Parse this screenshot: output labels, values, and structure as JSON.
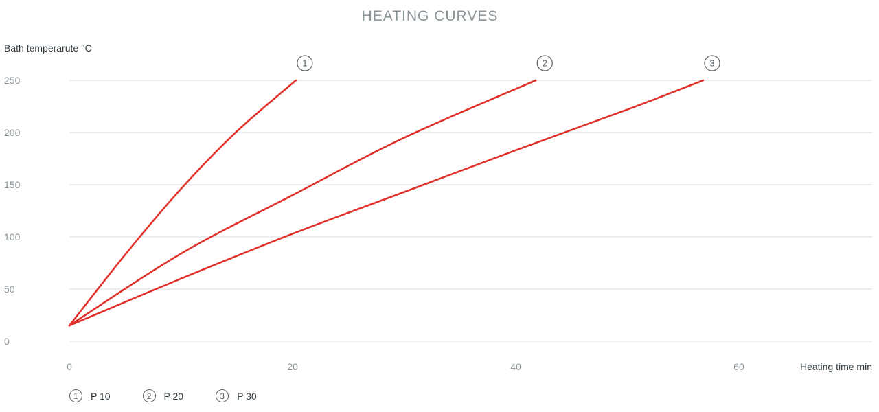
{
  "chart_data": {
    "type": "line",
    "title": "HEATING CURVES",
    "ylabel": "Bath temperarute °C",
    "xlabel": "Heating time min",
    "xlim": [
      0,
      70
    ],
    "ylim": [
      0,
      250
    ],
    "x_ticks": [
      0,
      20,
      40,
      60
    ],
    "y_ticks": [
      0,
      50,
      100,
      150,
      200,
      250
    ],
    "grid": true,
    "line_color": "#e0302a",
    "series": [
      {
        "name": "P 10",
        "marker": "1",
        "x": [
          0,
          5,
          10,
          15,
          20.3
        ],
        "y": [
          15,
          83,
          146,
          201,
          250
        ]
      },
      {
        "name": "P 20",
        "marker": "2",
        "x": [
          0,
          10,
          20,
          30,
          41.8
        ],
        "y": [
          15,
          84,
          140,
          195,
          250
        ]
      },
      {
        "name": "P 30",
        "marker": "3",
        "x": [
          0,
          10,
          20,
          30,
          40,
          50,
          56.8
        ],
        "y": [
          15,
          60,
          103,
          143,
          183,
          222,
          250
        ]
      }
    ]
  },
  "legend": {
    "items": [
      {
        "marker": "1",
        "label": "P 10"
      },
      {
        "marker": "2",
        "label": "P 20"
      },
      {
        "marker": "3",
        "label": "P 30"
      }
    ]
  }
}
